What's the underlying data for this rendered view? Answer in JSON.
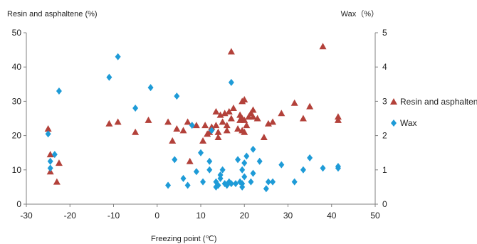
{
  "chart_data": {
    "type": "scatter",
    "xlabel": "Freezing point (℃)",
    "ylabel_left": "Resin and asphaltene (%)",
    "ylabel_right": "Wax（%）",
    "xlim": [
      -30,
      50
    ],
    "ylim_left": [
      0,
      50
    ],
    "ylim_right": [
      0,
      5
    ],
    "xticks": [
      "-30",
      "-20",
      "-10",
      "0",
      "10",
      "20",
      "30",
      "40",
      "50"
    ],
    "yticks_left": [
      "0",
      "10",
      "20",
      "30",
      "40",
      "50"
    ],
    "yticks_right": [
      "0",
      "1",
      "2",
      "3",
      "4",
      "5"
    ],
    "grid": false,
    "legend_position": "right",
    "series": [
      {
        "name": "Resin and asphaltene",
        "axis": "left",
        "marker": "triangle",
        "color": "#b3413a",
        "points": [
          [
            -25,
            22
          ],
          [
            -24.5,
            14.5
          ],
          [
            -24.5,
            9.5
          ],
          [
            -23,
            6.5
          ],
          [
            -22.5,
            12
          ],
          [
            -11,
            23.5
          ],
          [
            -9,
            24
          ],
          [
            -5,
            21
          ],
          [
            -2,
            24.5
          ],
          [
            2.5,
            24
          ],
          [
            3.5,
            18.5
          ],
          [
            4.5,
            22
          ],
          [
            6,
            21.5
          ],
          [
            7,
            24
          ],
          [
            7.5,
            12.5
          ],
          [
            9,
            23
          ],
          [
            10.5,
            18.5
          ],
          [
            11,
            23
          ],
          [
            11.5,
            20.5
          ],
          [
            12,
            21
          ],
          [
            12.5,
            22.5
          ],
          [
            13.5,
            27
          ],
          [
            13.5,
            23
          ],
          [
            14,
            19.5
          ],
          [
            14,
            21
          ],
          [
            14.5,
            26
          ],
          [
            15,
            24
          ],
          [
            15.5,
            26.5
          ],
          [
            16,
            23
          ],
          [
            16,
            21.5
          ],
          [
            16.5,
            27
          ],
          [
            17,
            44.5
          ],
          [
            17,
            25
          ],
          [
            17.5,
            28
          ],
          [
            18.5,
            22
          ],
          [
            19,
            26
          ],
          [
            19,
            24.5
          ],
          [
            19.5,
            30
          ],
          [
            19.5,
            25
          ],
          [
            19.5,
            21.5
          ],
          [
            20,
            30.5
          ],
          [
            20,
            24.5
          ],
          [
            20,
            21
          ],
          [
            20.5,
            23
          ],
          [
            21,
            25.5
          ],
          [
            21.5,
            26.5
          ],
          [
            22,
            27.5
          ],
          [
            22,
            25.5
          ],
          [
            23,
            25
          ],
          [
            24.5,
            19.5
          ],
          [
            25.5,
            23.5
          ],
          [
            26.5,
            24
          ],
          [
            28.5,
            26.5
          ],
          [
            31.5,
            29.5
          ],
          [
            33.5,
            25
          ],
          [
            35,
            28.5
          ],
          [
            38,
            46
          ],
          [
            41.5,
            25.5
          ],
          [
            41.5,
            24.5
          ]
        ]
      },
      {
        "name": "Wax",
        "axis": "right",
        "marker": "diamond",
        "color": "#1e9bd7",
        "points": [
          [
            -25,
            2.05
          ],
          [
            -24.5,
            1.25
          ],
          [
            -24.5,
            1.05
          ],
          [
            -23.5,
            1.45
          ],
          [
            -22.5,
            3.3
          ],
          [
            -11,
            3.7
          ],
          [
            -9,
            4.3
          ],
          [
            -5,
            2.8
          ],
          [
            -1.5,
            3.4
          ],
          [
            2.5,
            0.55
          ],
          [
            4,
            1.3
          ],
          [
            4.5,
            3.15
          ],
          [
            6,
            0.75
          ],
          [
            7,
            0.55
          ],
          [
            8,
            2.3
          ],
          [
            9,
            0.95
          ],
          [
            10,
            1.5
          ],
          [
            10.5,
            0.65
          ],
          [
            12,
            1.25
          ],
          [
            12,
            1.0
          ],
          [
            12.5,
            2.15
          ],
          [
            13.5,
            0.65
          ],
          [
            13.5,
            0.5
          ],
          [
            14,
            0.55
          ],
          [
            14.5,
            0.75
          ],
          [
            14.5,
            0.85
          ],
          [
            15,
            1.0
          ],
          [
            15.5,
            0.6
          ],
          [
            16,
            0.55
          ],
          [
            16.5,
            0.65
          ],
          [
            17,
            3.55
          ],
          [
            17,
            0.6
          ],
          [
            18,
            0.6
          ],
          [
            18.5,
            1.3
          ],
          [
            19,
            0.65
          ],
          [
            19.5,
            0.6
          ],
          [
            19.5,
            1.0
          ],
          [
            19.5,
            0.5
          ],
          [
            20,
            0.8
          ],
          [
            20,
            1.2
          ],
          [
            20.5,
            1.4
          ],
          [
            21.5,
            0.65
          ],
          [
            22,
            1.6
          ],
          [
            22,
            0.9
          ],
          [
            23.5,
            1.25
          ],
          [
            25,
            0.45
          ],
          [
            25.5,
            0.65
          ],
          [
            26.5,
            0.65
          ],
          [
            28.5,
            1.15
          ],
          [
            31.5,
            0.65
          ],
          [
            33.5,
            1.0
          ],
          [
            35,
            1.35
          ],
          [
            38,
            1.05
          ],
          [
            41.5,
            1.05
          ],
          [
            41.5,
            1.1
          ]
        ]
      }
    ]
  }
}
